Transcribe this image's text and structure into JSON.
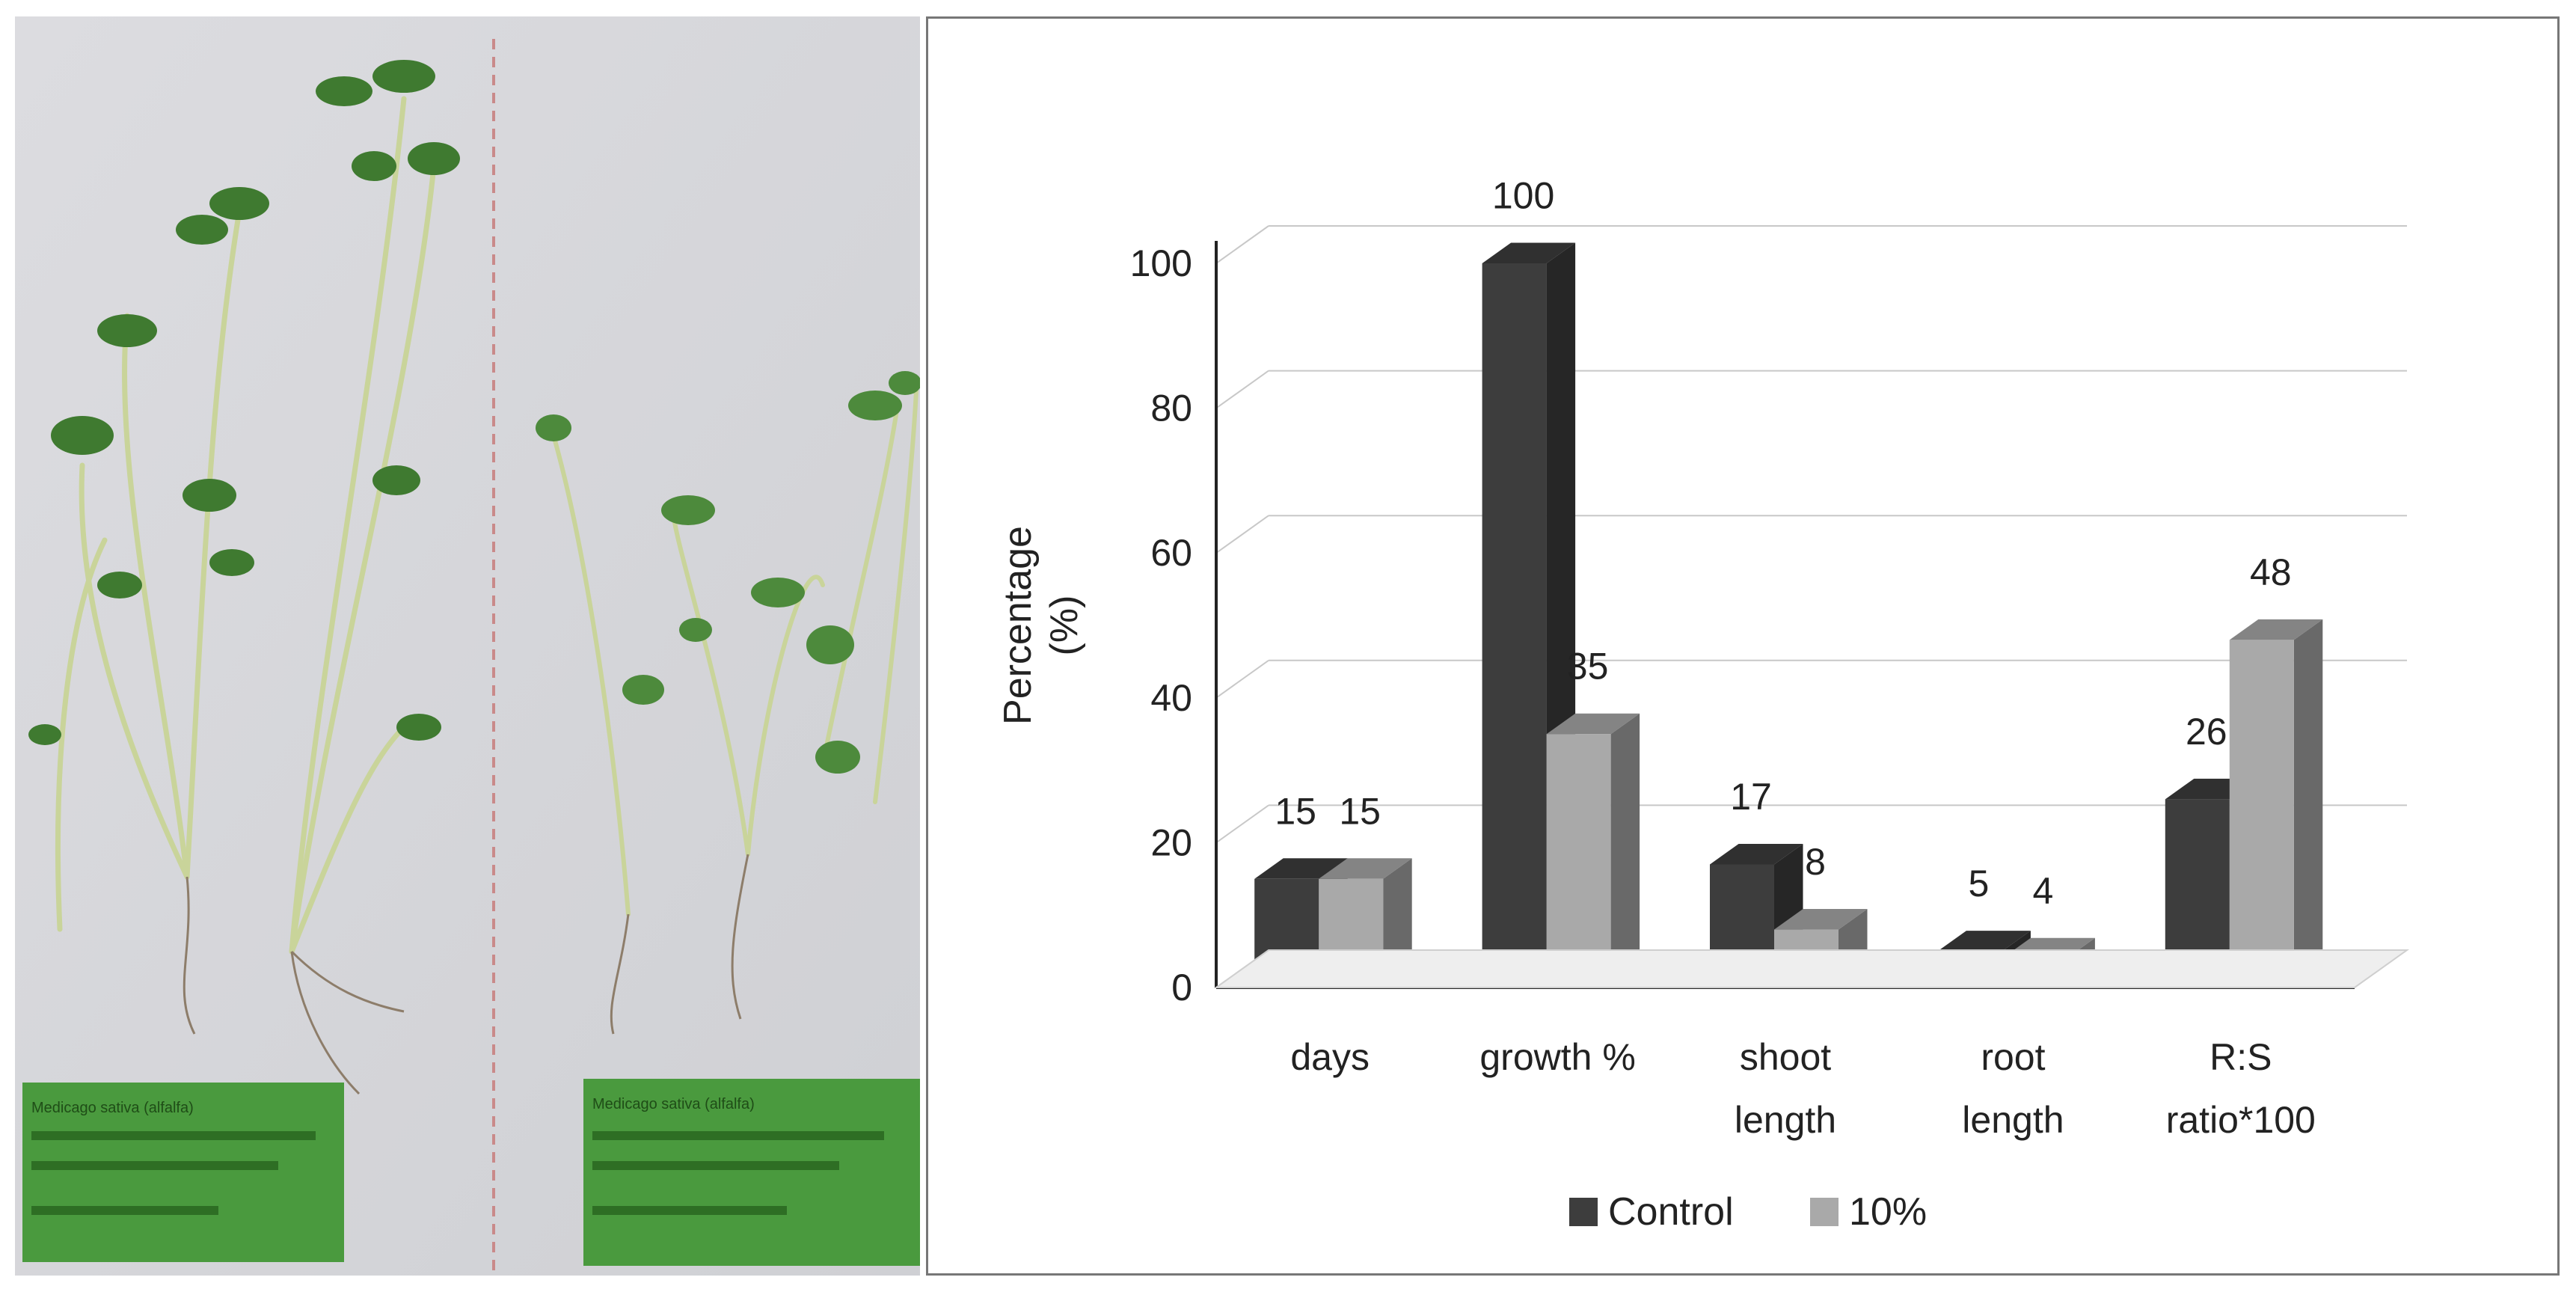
{
  "chart_data": {
    "type": "bar",
    "categories": [
      [
        "days"
      ],
      [
        "growth %"
      ],
      [
        "shoot",
        "length"
      ],
      [
        "root",
        "length"
      ],
      [
        "R:S",
        "ratio*100"
      ]
    ],
    "series": [
      {
        "name": "Control",
        "values": [
          15,
          100,
          17,
          5,
          26
        ],
        "color": "#3d3d3d"
      },
      {
        "name": "10%",
        "values": [
          15,
          35,
          8,
          4,
          48
        ],
        "color": "#a9a9a9"
      }
    ],
    "ylabel": [
      "Percentage",
      "(%)"
    ],
    "ylim": [
      0,
      100
    ],
    "yticks": [
      0,
      20,
      40,
      60,
      80,
      100
    ],
    "grid": true,
    "style": "3d",
    "legend": "bottom"
  },
  "photo": {
    "labels": [
      "Medicago sativa (alfalfa)",
      "Medicago sativa (alfalfa)"
    ],
    "label_color": "#4a9a3e",
    "board_color": "#d9d9dd"
  }
}
